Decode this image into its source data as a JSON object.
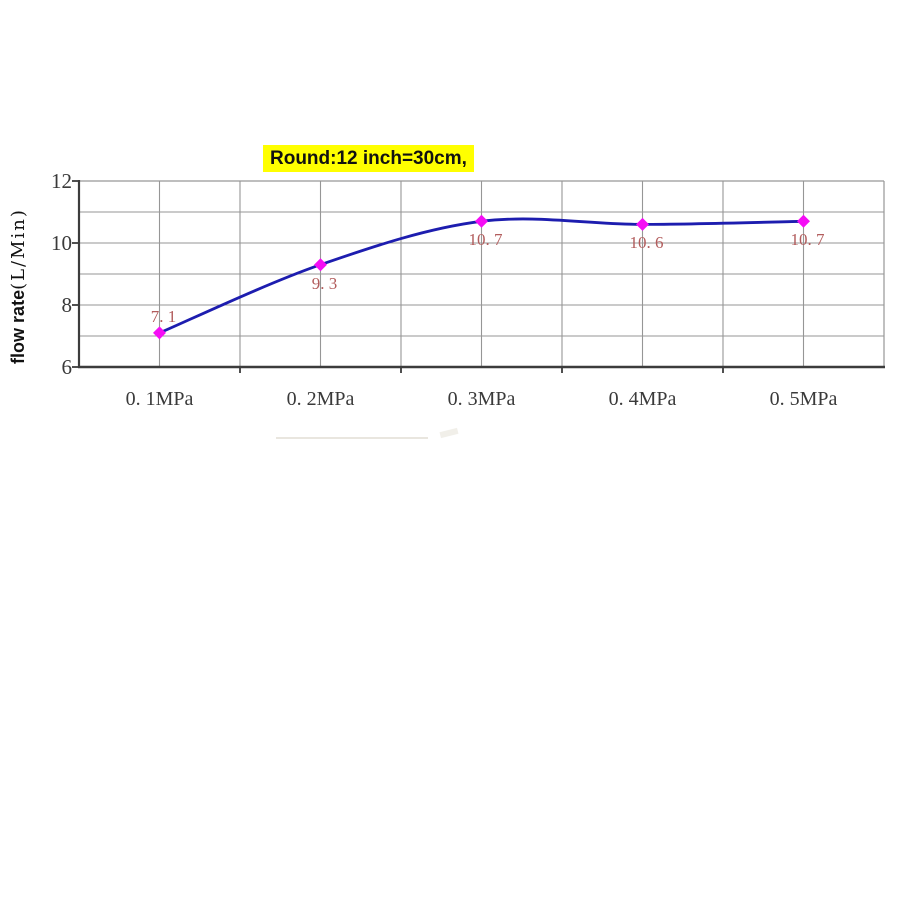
{
  "chart": {
    "title": "Round:12 inch=30cm,",
    "ylabel_text": "flow rate",
    "ylabel_units": "(L/Min)"
  },
  "chart_data": {
    "type": "line",
    "title": "Round:12 inch=30cm,",
    "xlabel": "",
    "ylabel": "flow rate (L/Min)",
    "categories": [
      "0. 1MPa",
      "0. 2MPa",
      "0. 3MPa",
      "0. 4MPa",
      "0. 5MPa"
    ],
    "series": [
      {
        "name": "flow rate",
        "values": [
          7.1,
          9.3,
          10.7,
          10.6,
          10.7
        ]
      }
    ],
    "point_labels": [
      "7. 1",
      "9. 3",
      "10. 7",
      "10. 6",
      "10. 7"
    ],
    "ylim": [
      6,
      12
    ],
    "ytick_labels": [
      "12",
      "10",
      "8",
      "6"
    ],
    "yticks": [
      12,
      10,
      8,
      6
    ],
    "grid": true,
    "grid_step_y": 1,
    "legend": "none",
    "colors": {
      "line": "#1d1daf",
      "marker": "#f50df5",
      "point_label": "#b25c5c",
      "grid": "#969696",
      "axis": "#3c3c3c",
      "tick_label": "#3a3a3a",
      "title_highlight": "#ffff00",
      "title_text": "#111111"
    }
  }
}
